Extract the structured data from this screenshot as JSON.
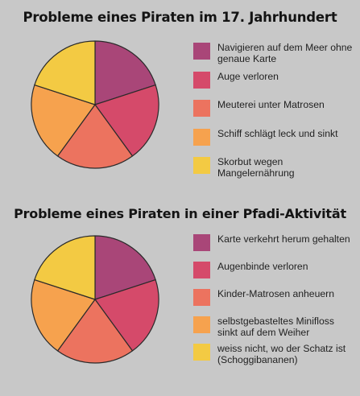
{
  "chart_data": [
    {
      "type": "pie",
      "title": "Probleme eines Piraten im 17. Jahrhundert",
      "categories": [
        "Navigieren auf dem Meer ohne genaue Karte",
        "Auge verloren",
        "Meuterei unter Matrosen",
        "Schiff schlägt leck und sinkt",
        "Skorbut wegen Mangelernährung"
      ],
      "values": [
        20,
        20,
        20,
        20,
        20
      ],
      "colors": [
        "#a94678",
        "#d54a6a",
        "#ec735f",
        "#f6a24e",
        "#f3ca43"
      ],
      "legend_position": "right"
    },
    {
      "type": "pie",
      "title": "Probleme eines Piraten in einer Pfadi-Aktivität",
      "categories": [
        "Karte verkehrt herum gehalten",
        "Augenbinde verloren",
        "Kinder-Matrosen anheuern",
        "selbstgebasteltes Minifloss sinkt auf dem Weiher",
        "weiss nicht, wo der Schatz ist (Schoggibananen)"
      ],
      "values": [
        20,
        20,
        20,
        20,
        20
      ],
      "colors": [
        "#a94678",
        "#d54a6a",
        "#ec735f",
        "#f6a24e",
        "#f3ca43"
      ],
      "legend_position": "right"
    }
  ]
}
